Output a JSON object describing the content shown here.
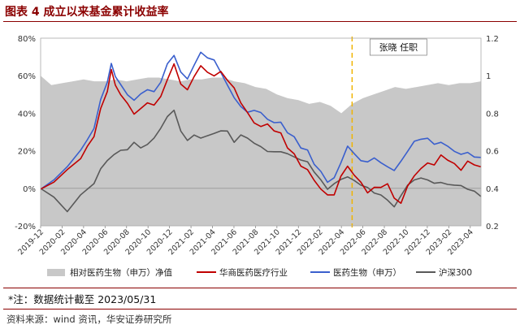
{
  "header": {
    "title": "图表 4 成立以来基金累计收益率"
  },
  "chart_data": {
    "type": "line",
    "title": "图表 4 成立以来基金累计收益率",
    "x_start": "2019-12",
    "x_end": "2023-05",
    "x_tick_labels": [
      "2019-12",
      "2020-02",
      "2020-04",
      "2020-06",
      "2020-08",
      "2020-10",
      "2020-12",
      "2021-02",
      "2021-04",
      "2021-06",
      "2021-08",
      "2021-10",
      "2021-12",
      "2022-02",
      "2022-04",
      "2022-06",
      "2022-08",
      "2022-10",
      "2022-12",
      "2023-02",
      "2023-04"
    ],
    "left_axis": {
      "ticks": [
        "80%",
        "60%",
        "40%",
        "20%",
        "0%",
        "-20%"
      ],
      "ylim": [
        -20,
        80
      ],
      "unit": "%"
    },
    "right_axis": {
      "ticks": [
        "1.2",
        "1",
        "0.8",
        "0.6",
        "0.4",
        "0.2"
      ],
      "ylim": [
        0.2,
        1.2
      ]
    },
    "series": [
      {
        "name": "相对医药生物（申万）净值",
        "axis": "right",
        "style": "area",
        "color": "#c8c8c8",
        "points": [
          [
            0,
            1.0
          ],
          [
            1,
            0.95
          ],
          [
            2,
            0.96
          ],
          [
            3,
            0.97
          ],
          [
            4,
            0.98
          ],
          [
            5,
            0.97
          ],
          [
            6,
            0.97
          ],
          [
            7,
            0.98
          ],
          [
            8,
            0.97
          ],
          [
            9,
            0.98
          ],
          [
            10,
            0.99
          ],
          [
            11,
            0.99
          ],
          [
            12,
            0.98
          ],
          [
            13,
            0.97
          ],
          [
            14,
            0.98
          ],
          [
            15,
            0.98
          ],
          [
            16,
            0.99
          ],
          [
            17,
            0.99
          ],
          [
            18,
            0.97
          ],
          [
            19,
            0.96
          ],
          [
            20,
            0.94
          ],
          [
            21,
            0.93
          ],
          [
            22,
            0.9
          ],
          [
            23,
            0.88
          ],
          [
            24,
            0.87
          ],
          [
            25,
            0.85
          ],
          [
            26,
            0.86
          ],
          [
            27,
            0.84
          ],
          [
            28,
            0.8
          ],
          [
            29,
            0.85
          ],
          [
            30,
            0.88
          ],
          [
            31,
            0.9
          ],
          [
            32,
            0.92
          ],
          [
            33,
            0.94
          ],
          [
            34,
            0.93
          ],
          [
            35,
            0.94
          ],
          [
            36,
            0.95
          ],
          [
            37,
            0.96
          ],
          [
            38,
            0.95
          ],
          [
            39,
            0.96
          ],
          [
            40,
            0.96
          ],
          [
            41,
            0.97
          ]
        ]
      },
      {
        "name": "华商医药医疗行业",
        "axis": "left",
        "color": "#c00000",
        "points": [
          [
            0,
            0
          ],
          [
            1,
            3
          ],
          [
            2,
            10
          ],
          [
            3,
            16
          ],
          [
            3.5,
            22
          ],
          [
            4,
            28
          ],
          [
            4.5,
            42
          ],
          [
            5,
            52
          ],
          [
            5.3,
            63
          ],
          [
            5.6,
            55
          ],
          [
            6,
            50
          ],
          [
            6.5,
            45
          ],
          [
            7,
            40
          ],
          [
            7.5,
            42
          ],
          [
            8,
            46
          ],
          [
            8.5,
            44
          ],
          [
            9,
            49
          ],
          [
            9.5,
            58
          ],
          [
            10,
            66
          ],
          [
            10.5,
            56
          ],
          [
            11,
            52
          ],
          [
            11.5,
            60
          ],
          [
            12,
            65
          ],
          [
            12.5,
            62
          ],
          [
            13,
            60
          ],
          [
            13.5,
            62
          ],
          [
            14,
            58
          ],
          [
            14.5,
            53
          ],
          [
            15,
            46
          ],
          [
            15.5,
            40
          ],
          [
            16,
            35
          ],
          [
            16.5,
            33
          ],
          [
            17,
            34
          ],
          [
            17.5,
            31
          ],
          [
            18,
            29
          ],
          [
            18.5,
            22
          ],
          [
            19,
            18
          ],
          [
            19.5,
            12
          ],
          [
            20,
            10
          ],
          [
            20.5,
            4
          ],
          [
            21,
            0
          ],
          [
            21.5,
            -4
          ],
          [
            22,
            -3
          ],
          [
            22.5,
            6
          ],
          [
            23,
            12
          ],
          [
            23.5,
            7
          ],
          [
            24,
            3
          ],
          [
            24.5,
            -2
          ],
          [
            25,
            0
          ],
          [
            25.5,
            1
          ],
          [
            26,
            2
          ],
          [
            26.5,
            -5
          ],
          [
            27,
            -8
          ],
          [
            27.5,
            1
          ],
          [
            28,
            7
          ],
          [
            28.5,
            10
          ],
          [
            29,
            14
          ],
          [
            29.5,
            12
          ],
          [
            30,
            18
          ],
          [
            30.5,
            15
          ],
          [
            31,
            13
          ],
          [
            31.5,
            10
          ],
          [
            32,
            14
          ],
          [
            32.5,
            13
          ],
          [
            33,
            11
          ]
        ]
      },
      {
        "name": "医药生物（申万）",
        "axis": "left",
        "color": "#3a5fcd",
        "points": [
          [
            0,
            0
          ],
          [
            1,
            4
          ],
          [
            2,
            12
          ],
          [
            3,
            20
          ],
          [
            3.5,
            26
          ],
          [
            4,
            32
          ],
          [
            4.5,
            47
          ],
          [
            5,
            57
          ],
          [
            5.3,
            66
          ],
          [
            5.6,
            60
          ],
          [
            6,
            55
          ],
          [
            6.5,
            50
          ],
          [
            7,
            47
          ],
          [
            7.5,
            50
          ],
          [
            8,
            53
          ],
          [
            8.5,
            51
          ],
          [
            9,
            57
          ],
          [
            9.5,
            66
          ],
          [
            10,
            71
          ],
          [
            10.5,
            62
          ],
          [
            11,
            58
          ],
          [
            11.5,
            66
          ],
          [
            12,
            72
          ],
          [
            12.5,
            70
          ],
          [
            13,
            68
          ],
          [
            13.5,
            62
          ],
          [
            14,
            55
          ],
          [
            14.5,
            48
          ],
          [
            15,
            44
          ],
          [
            15.5,
            40
          ],
          [
            16,
            42
          ],
          [
            16.5,
            40
          ],
          [
            17,
            37
          ],
          [
            17.5,
            35
          ],
          [
            18,
            35
          ],
          [
            18.5,
            30
          ],
          [
            19,
            27
          ],
          [
            19.5,
            22
          ],
          [
            20,
            20
          ],
          [
            20.5,
            13
          ],
          [
            21,
            9
          ],
          [
            21.5,
            3
          ],
          [
            22,
            6
          ],
          [
            22.5,
            13
          ],
          [
            23,
            23
          ],
          [
            23.5,
            18
          ],
          [
            24,
            15
          ],
          [
            24.5,
            14
          ],
          [
            25,
            16
          ],
          [
            25.5,
            14
          ],
          [
            26,
            11
          ],
          [
            26.5,
            10
          ],
          [
            27,
            14
          ],
          [
            27.5,
            20
          ],
          [
            28,
            25
          ],
          [
            28.5,
            26
          ],
          [
            29,
            27
          ],
          [
            29.5,
            23
          ],
          [
            30,
            25
          ],
          [
            30.5,
            22
          ],
          [
            31,
            20
          ],
          [
            31.5,
            18
          ],
          [
            32,
            19
          ],
          [
            32.5,
            17
          ],
          [
            33,
            16
          ]
        ]
      },
      {
        "name": "沪深300",
        "axis": "left",
        "color": "#595959",
        "points": [
          [
            0,
            0
          ],
          [
            1,
            -5
          ],
          [
            2,
            -12
          ],
          [
            3,
            -4
          ],
          [
            4,
            3
          ],
          [
            4.5,
            10
          ],
          [
            5,
            15
          ],
          [
            5.5,
            18
          ],
          [
            6,
            20
          ],
          [
            6.5,
            21
          ],
          [
            7,
            24
          ],
          [
            7.5,
            22
          ],
          [
            8,
            23
          ],
          [
            8.5,
            27
          ],
          [
            9,
            32
          ],
          [
            9.5,
            38
          ],
          [
            10,
            42
          ],
          [
            10.5,
            30
          ],
          [
            11,
            26
          ],
          [
            11.5,
            28
          ],
          [
            12,
            27
          ],
          [
            12.5,
            28
          ],
          [
            13,
            29
          ],
          [
            13.5,
            31
          ],
          [
            14,
            30
          ],
          [
            14.5,
            25
          ],
          [
            15,
            28
          ],
          [
            15.5,
            27
          ],
          [
            16,
            24
          ],
          [
            16.5,
            22
          ],
          [
            17,
            20
          ],
          [
            17.5,
            19
          ],
          [
            18,
            20
          ],
          [
            18.5,
            18
          ],
          [
            19,
            17
          ],
          [
            19.5,
            15
          ],
          [
            20,
            14
          ],
          [
            20.5,
            9
          ],
          [
            21,
            4
          ],
          [
            21.5,
            0
          ],
          [
            22,
            2
          ],
          [
            22.5,
            5
          ],
          [
            23,
            6
          ],
          [
            23.5,
            4
          ],
          [
            24,
            2
          ],
          [
            24.5,
            0
          ],
          [
            25,
            -2
          ],
          [
            25.5,
            -4
          ],
          [
            26,
            -6
          ],
          [
            26.5,
            -10
          ],
          [
            27,
            -4
          ],
          [
            27.5,
            2
          ],
          [
            28,
            4
          ],
          [
            28.5,
            6
          ],
          [
            29,
            4
          ],
          [
            29.5,
            3
          ],
          [
            30,
            3
          ],
          [
            30.5,
            2
          ],
          [
            31,
            2
          ],
          [
            31.5,
            1
          ],
          [
            32,
            0
          ],
          [
            32.5,
            -2
          ],
          [
            33,
            -4
          ]
        ]
      }
    ],
    "annotation": {
      "text": "张晓 任职",
      "x_label": "2022-05"
    },
    "legend": [
      "相对医药生物（申万）净值",
      "华商医药医疗行业",
      "医药生物（申万）",
      "沪深300"
    ],
    "legend_position": "bottom"
  },
  "footnote": "*注：数据统计截至 2023/05/31",
  "source": "资料来源：wind 资讯，华安证券研究所"
}
